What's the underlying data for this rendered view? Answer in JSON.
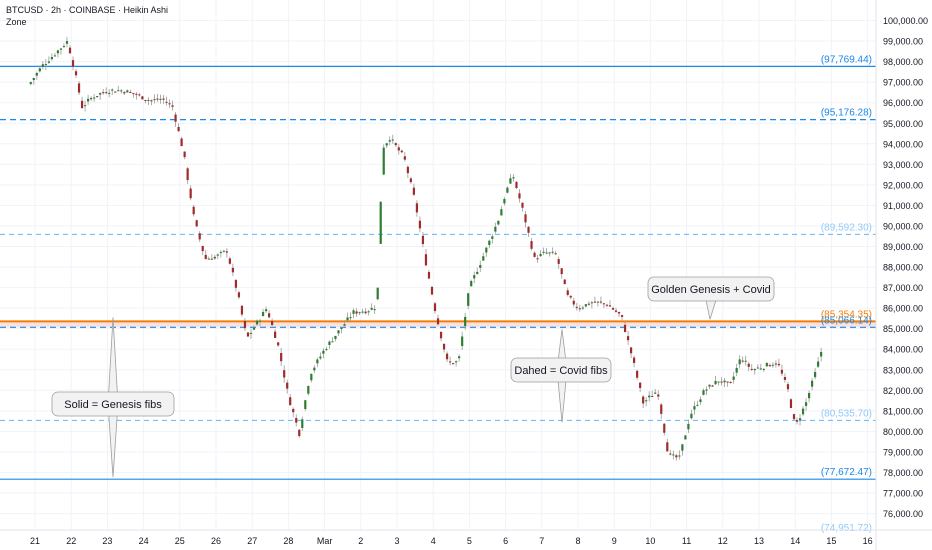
{
  "header": {
    "title": "BTCUSD · 2h · COINBASE · Heikin Ashi",
    "indicator": "Zone"
  },
  "colors": {
    "up": "#26a69a",
    "upDark": "#2e7d32",
    "down": "#a12a2a",
    "solidLine": "#1e88e5",
    "dashedLine": "#1e88e5",
    "dashedLight": "#64b5f6",
    "orange": "#f57c00",
    "zoneFill": "#f6d6d6",
    "calloutBg": "#f2f2f2",
    "calloutBorder": "#9e9e9e"
  },
  "chart_data": {
    "type": "candlestick",
    "title": "BTCUSD · 2h · COINBASE · Heikin Ashi",
    "ylim": [
      75200,
      101000
    ],
    "y_ticks": [
      76000,
      77000,
      78000,
      79000,
      80000,
      81000,
      82000,
      83000,
      84000,
      85000,
      86000,
      87000,
      88000,
      89000,
      90000,
      91000,
      92000,
      93000,
      94000,
      95000,
      96000,
      97000,
      98000,
      99000,
      100000
    ],
    "y_tick_labels": [
      "76,000.00",
      "77,000.00",
      "78,000.00",
      "79,000.00",
      "80,000.00",
      "81,000.00",
      "82,000.00",
      "83,000.00",
      "84,000.00",
      "85,000.00",
      "86,000.00",
      "87,000.00",
      "88,000.00",
      "89,000.00",
      "90,000.00",
      "91,000.00",
      "92,000.00",
      "93,000.00",
      "94,000.00",
      "95,000.00",
      "96,000.00",
      "97,000.00",
      "98,000.00",
      "99,000.00",
      "100,000.00"
    ],
    "x_ticks": [
      "21",
      "22",
      "23",
      "24",
      "25",
      "26",
      "27",
      "28",
      "Mar",
      "2",
      "3",
      "4",
      "5",
      "6",
      "7",
      "8",
      "9",
      "10",
      "11",
      "12",
      "13",
      "14",
      "15",
      "16"
    ],
    "x_tick_positions": [
      0,
      1,
      2,
      3,
      4,
      5,
      6,
      7,
      8,
      9,
      10,
      11,
      12,
      13,
      14,
      15,
      16,
      17,
      18,
      19,
      20,
      21,
      22,
      23
    ],
    "levels": [
      {
        "value": 97769.44,
        "label": "(97,769.44)",
        "style": "solid"
      },
      {
        "value": 95176.28,
        "label": "(95,176.28)",
        "style": "dashed"
      },
      {
        "value": 89592.3,
        "label": "(89,592.30)",
        "style": "dashed-light"
      },
      {
        "value": 85354.35,
        "label": "(85,354.35)",
        "style": "orange"
      },
      {
        "value": 85066.14,
        "label": "(85,066.14)",
        "style": "dashed"
      },
      {
        "value": 80535.7,
        "label": "(80,535.70)",
        "style": "dashed-light"
      },
      {
        "value": 77672.47,
        "label": "(77,672.47)",
        "style": "solid"
      },
      {
        "value": 74951.72,
        "label": "(74,951.72)",
        "style": "dashed-light"
      }
    ],
    "zone": [
      85066.14,
      85354.35
    ],
    "price_path": [
      [
        -0.2,
        96800
      ],
      [
        0.2,
        97800
      ],
      [
        0.5,
        98300
      ],
      [
        0.9,
        99000
      ],
      [
        1.1,
        97500
      ],
      [
        1.3,
        95800
      ],
      [
        1.6,
        96300
      ],
      [
        2.0,
        96600
      ],
      [
        2.4,
        96600
      ],
      [
        2.8,
        96400
      ],
      [
        3.2,
        96100
      ],
      [
        3.5,
        96200
      ],
      [
        3.8,
        95800
      ],
      [
        4.1,
        93600
      ],
      [
        4.4,
        90300
      ],
      [
        4.7,
        88400
      ],
      [
        5.0,
        88500
      ],
      [
        5.3,
        88800
      ],
      [
        5.6,
        86700
      ],
      [
        5.85,
        84500
      ],
      [
        6.1,
        85200
      ],
      [
        6.4,
        86000
      ],
      [
        6.7,
        84300
      ],
      [
        7.0,
        81700
      ],
      [
        7.3,
        79900
      ],
      [
        7.6,
        82800
      ],
      [
        8.0,
        84000
      ],
      [
        8.4,
        84900
      ],
      [
        8.8,
        85800
      ],
      [
        9.2,
        85900
      ],
      [
        9.45,
        86100
      ],
      [
        9.6,
        93800
      ],
      [
        9.8,
        94300
      ],
      [
        10.2,
        93300
      ],
      [
        10.5,
        91200
      ],
      [
        10.8,
        88200
      ],
      [
        11.1,
        85500
      ],
      [
        11.4,
        83300
      ],
      [
        11.7,
        83400
      ],
      [
        12.0,
        87000
      ],
      [
        12.4,
        88600
      ],
      [
        12.8,
        90300
      ],
      [
        13.0,
        91600
      ],
      [
        13.2,
        92500
      ],
      [
        13.5,
        90600
      ],
      [
        13.8,
        88400
      ],
      [
        14.1,
        88700
      ],
      [
        14.4,
        88600
      ],
      [
        14.7,
        86600
      ],
      [
        15.0,
        86000
      ],
      [
        15.4,
        86300
      ],
      [
        15.8,
        86200
      ],
      [
        16.2,
        85600
      ],
      [
        16.5,
        83600
      ],
      [
        16.8,
        81400
      ],
      [
        17.2,
        82000
      ],
      [
        17.5,
        78800
      ],
      [
        17.8,
        78700
      ],
      [
        18.1,
        80800
      ],
      [
        18.5,
        82000
      ],
      [
        18.9,
        82500
      ],
      [
        19.2,
        82200
      ],
      [
        19.5,
        83600
      ],
      [
        19.8,
        83000
      ],
      [
        20.2,
        83200
      ],
      [
        20.5,
        83400
      ],
      [
        20.8,
        82000
      ],
      [
        21.0,
        80200
      ],
      [
        21.3,
        81400
      ],
      [
        21.6,
        83100
      ],
      [
        21.75,
        84100
      ]
    ],
    "annotations": [
      {
        "text": "Solid = Genesis fibs",
        "pointer": "vertical",
        "from": 77672.47,
        "to": 85354.35
      },
      {
        "text": "Dahed = Covid fibs",
        "pointer": "vertical",
        "from": 80535.7,
        "to": 85066.14
      },
      {
        "text": "Golden Genesis + Covid",
        "pointer": "down",
        "to": 85354.35
      }
    ]
  }
}
